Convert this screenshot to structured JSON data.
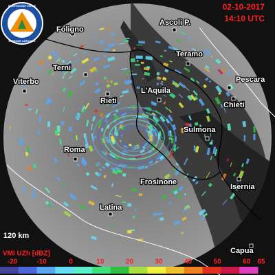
{
  "header": {
    "date": "02-10-2017",
    "time": "14:10 UTC"
  },
  "logo": {
    "top": "PROTEZIONE CIVILE",
    "bottom": "REGIONE ABRUZZO"
  },
  "cities": [
    "Foligno",
    "Ascoli P.",
    "Teramo",
    "Terni",
    "Pescara",
    "Viterbo",
    "Rieti",
    "L'Aquila",
    "Chieti",
    "Sulmona",
    "Roma",
    "Frosinone",
    "Isernia",
    "Latina",
    "Capua"
  ],
  "range_label": "120 km",
  "legend": {
    "title": "VMI UZh [dBZ]",
    "ticks": [
      -20,
      -10,
      0,
      10,
      20,
      30,
      40,
      50,
      60,
      65
    ],
    "colors": [
      "#44449a",
      "#4a66d8",
      "#5aa6f2",
      "#66dcf8",
      "#5cf0c8",
      "#40e080",
      "#30c040",
      "#a8e040",
      "#f0f040",
      "#f0c030",
      "#f08020",
      "#e03020",
      "#c81848",
      "#e040c0"
    ]
  }
}
